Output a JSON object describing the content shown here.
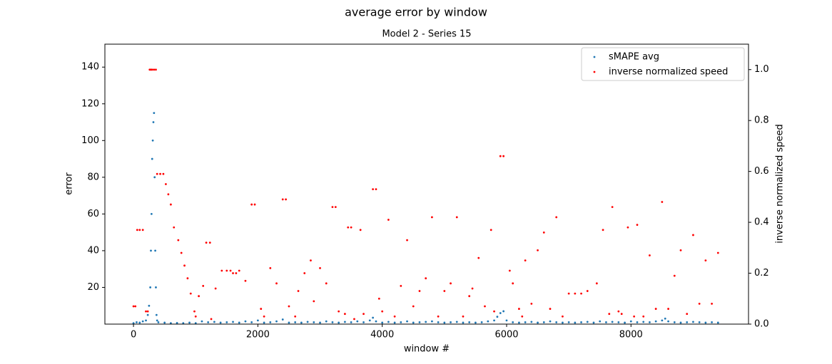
{
  "chart_data": {
    "type": "scatter",
    "title": "average error by window",
    "subtitle": "Model 2 - Series 15",
    "xlabel": "window #",
    "ylabel": "error",
    "y2label": "inverse normalized speed",
    "xlim": [
      -460,
      9890
    ],
    "xticks": [
      0,
      2000,
      4000,
      6000,
      8000
    ],
    "ylim": [
      0,
      152.5
    ],
    "yticks": [
      20,
      40,
      60,
      80,
      100,
      120,
      140
    ],
    "y2lim": [
      0,
      1.1
    ],
    "y2ticks": [
      {
        "value": 0,
        "label": "0.0"
      },
      0.2,
      0.4,
      0.6,
      0.8,
      {
        "value": 1,
        "label": "1.0"
      }
    ],
    "legend": "upper right",
    "series": [
      {
        "name": "sMAPE avg",
        "color": "#1f77b4",
        "x": [
          0,
          50,
          100,
          150,
          200,
          230,
          250,
          270,
          280,
          290,
          300,
          310,
          320,
          330,
          340,
          350,
          360,
          370,
          380,
          400,
          500,
          600,
          700,
          800,
          900,
          1000,
          1100,
          1200,
          1300,
          1400,
          1500,
          1600,
          1700,
          1800,
          1900,
          2000,
          2100,
          2200,
          2300,
          2400,
          2500,
          2600,
          2700,
          2800,
          2900,
          3000,
          3100,
          3200,
          3300,
          3400,
          3500,
          3600,
          3700,
          3800,
          3850,
          3900,
          4000,
          4100,
          4200,
          4300,
          4400,
          4500,
          4600,
          4700,
          4800,
          4900,
          5000,
          5100,
          5200,
          5300,
          5400,
          5500,
          5600,
          5700,
          5800,
          5850,
          5900,
          5950,
          6000,
          6100,
          6200,
          6300,
          6400,
          6500,
          6600,
          6700,
          6800,
          6900,
          7000,
          7100,
          7200,
          7300,
          7400,
          7500,
          7600,
          7700,
          7800,
          7900,
          8000,
          8100,
          8200,
          8300,
          8400,
          8500,
          8550,
          8600,
          8700,
          8800,
          8900,
          9000,
          9100,
          9200,
          9300,
          9400
        ],
        "values": [
          0.5,
          1,
          0.8,
          1.5,
          2,
          5,
          10,
          20,
          40,
          60,
          90,
          100,
          110,
          115,
          80,
          40,
          20,
          5,
          2,
          1,
          0.8,
          0.5,
          0.6,
          0.5,
          0.8,
          0.5,
          1.5,
          1,
          1.2,
          0.8,
          1,
          1.2,
          0.8,
          1.5,
          1,
          2,
          0.8,
          1,
          1.5,
          2.5,
          0.8,
          1,
          0.8,
          1.2,
          1,
          0.8,
          1.5,
          1,
          0.8,
          1.2,
          1,
          1.5,
          1,
          2,
          3.5,
          1.5,
          0.8,
          1.2,
          0.8,
          1,
          1.5,
          0.8,
          1,
          1.2,
          1.5,
          1,
          0.8,
          1,
          1.2,
          0.8,
          1,
          0.8,
          1,
          1.5,
          2,
          4,
          6,
          7,
          2,
          1,
          0.8,
          1,
          1.2,
          0.8,
          1,
          1.5,
          1,
          0.8,
          1,
          0.8,
          1,
          1.2,
          0.8,
          1.5,
          1,
          1.2,
          1,
          0.8,
          1.5,
          1,
          1.2,
          1,
          1.5,
          2,
          3,
          1.5,
          1,
          0.8,
          1,
          1.2,
          1,
          0.8,
          1,
          0.8
        ]
      },
      {
        "name": "inverse normalized speed",
        "color": "#ff0000",
        "axis": "y2",
        "x": [
          0,
          30,
          60,
          100,
          150,
          200,
          230,
          260,
          280,
          300,
          330,
          360,
          380,
          430,
          480,
          520,
          560,
          600,
          650,
          720,
          770,
          820,
          870,
          920,
          980,
          1000,
          1050,
          1120,
          1170,
          1230,
          1250,
          1320,
          1420,
          1500,
          1560,
          1600,
          1650,
          1700,
          1800,
          1900,
          1950,
          2050,
          2100,
          2200,
          2300,
          2400,
          2450,
          2500,
          2600,
          2650,
          2750,
          2850,
          2900,
          3000,
          3100,
          3200,
          3250,
          3300,
          3400,
          3450,
          3500,
          3550,
          3650,
          3700,
          3850,
          3900,
          3950,
          4000,
          4100,
          4200,
          4300,
          4400,
          4500,
          4600,
          4700,
          4800,
          4900,
          5000,
          5100,
          5200,
          5300,
          5400,
          5450,
          5550,
          5650,
          5750,
          5800,
          5900,
          5950,
          6050,
          6100,
          6200,
          6250,
          6300,
          6400,
          6500,
          6600,
          6700,
          6800,
          6900,
          7000,
          7100,
          7200,
          7300,
          7450,
          7550,
          7650,
          7700,
          7800,
          7850,
          7950,
          8050,
          8100,
          8200,
          8300,
          8400,
          8500,
          8600,
          8700,
          8800,
          8900,
          9000,
          9100,
          9200,
          9300,
          9400
        ],
        "values": [
          0.07,
          0.07,
          0.37,
          0.37,
          0.37,
          0.05,
          0.05,
          1.0,
          1.0,
          1.0,
          1.0,
          1.0,
          0.59,
          0.59,
          0.59,
          0.55,
          0.51,
          0.47,
          0.38,
          0.33,
          0.28,
          0.23,
          0.18,
          0.12,
          0.05,
          0.03,
          0.11,
          0.15,
          0.32,
          0.32,
          0.02,
          0.14,
          0.21,
          0.21,
          0.21,
          0.2,
          0.2,
          0.21,
          0.17,
          0.47,
          0.47,
          0.06,
          0.03,
          0.22,
          0.16,
          0.49,
          0.49,
          0.07,
          0.03,
          0.13,
          0.2,
          0.25,
          0.09,
          0.22,
          0.16,
          0.46,
          0.46,
          0.05,
          0.04,
          0.38,
          0.38,
          0.02,
          0.37,
          0.04,
          0.53,
          0.53,
          0.1,
          0.05,
          0.41,
          0.03,
          0.15,
          0.33,
          0.07,
          0.13,
          0.18,
          0.42,
          0.03,
          0.13,
          0.16,
          0.42,
          0.03,
          0.11,
          0.14,
          0.26,
          0.07,
          0.37,
          0.05,
          0.66,
          0.66,
          0.21,
          0.16,
          0.06,
          0.03,
          0.25,
          0.08,
          0.29,
          0.36,
          0.06,
          0.42,
          0.03,
          0.12,
          0.12,
          0.12,
          0.13,
          0.16,
          0.37,
          0.04,
          0.46,
          0.05,
          0.04,
          0.38,
          0.03,
          0.39,
          0.03,
          0.27,
          0.06,
          0.48,
          0.06,
          0.19,
          0.29,
          0.04,
          0.35,
          0.08,
          0.25,
          0.08,
          0.28
        ]
      }
    ]
  }
}
